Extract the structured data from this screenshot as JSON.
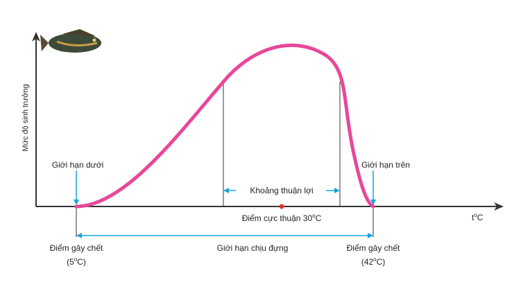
{
  "y_axis_label": "Mức độ sinh trưởng",
  "x_axis_label": {
    "text": "t",
    "sup": "o",
    "unit": "C"
  },
  "lower_limit": "Giới hạn dưới",
  "upper_limit": "Giới hạn trên",
  "favorable_range": "Khoảng thuận lợi",
  "optimum": {
    "text": "Điểm cực thuận 30",
    "sup": "o",
    "unit": "C"
  },
  "tolerance_range": "Giới hạn chịu đựng",
  "lethal_low": {
    "label": "Điểm gây chết",
    "value": "(5",
    "sup": "o",
    "unit": "C)"
  },
  "lethal_high": {
    "label": "Điểm gây chết",
    "value": "(42",
    "sup": "o",
    "unit": "C)"
  }
}
